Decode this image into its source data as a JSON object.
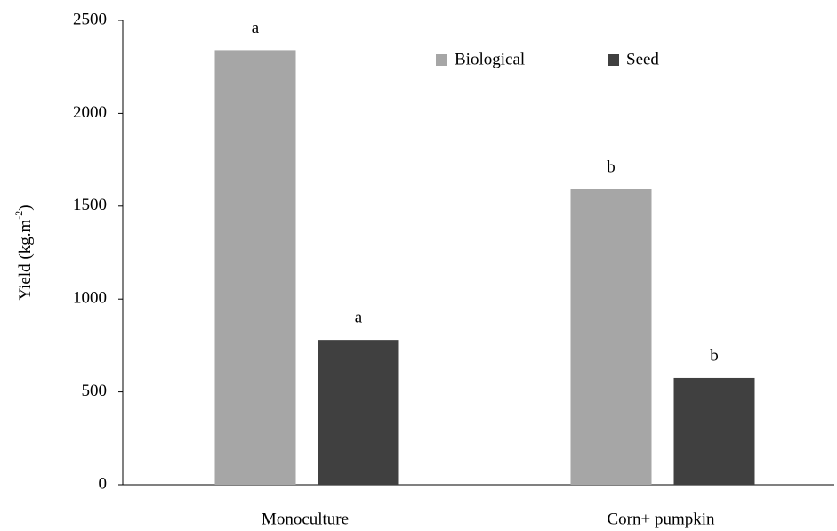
{
  "chart_data": {
    "type": "bar",
    "y_label": [
      "Yield (kg.m",
      "-2",
      ")"
    ],
    "categories": [
      "Monoculture",
      "Corn+ pumpkin"
    ],
    "series": [
      {
        "name": "Biological",
        "color": "#a6a6a6",
        "values": [
          2340,
          1590
        ],
        "labels": [
          "a",
          "b"
        ]
      },
      {
        "name": "Seed",
        "color": "#404040",
        "values": [
          780,
          575
        ],
        "labels": [
          "a",
          "b"
        ]
      }
    ],
    "ylim": [
      0,
      2500
    ],
    "yticks": [
      0,
      500,
      1000,
      1500,
      2000,
      2500
    ],
    "grid": false,
    "legend": "top"
  }
}
